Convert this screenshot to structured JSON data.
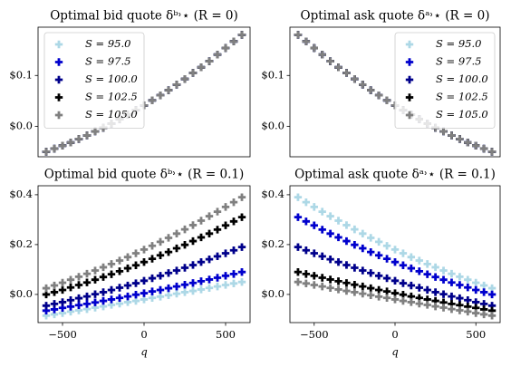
{
  "chart_data": [
    {
      "type": "scatter",
      "title": "Optimal bid quote δᵇ˒⋆ (R = 0)",
      "legend": "upper left",
      "x": [
        -600,
        -550,
        -500,
        -450,
        -400,
        -350,
        -300,
        -250,
        -200,
        -150,
        -100,
        -50,
        0,
        50,
        100,
        150,
        200,
        250,
        300,
        350,
        400,
        450,
        500,
        550,
        600
      ],
      "xlim": [
        -650,
        650
      ],
      "ylim": [
        -0.06,
        0.195
      ],
      "yticks": [
        {
          "value": 0.0,
          "label": "$0.0"
        },
        {
          "value": 0.1,
          "label": "$0.1"
        }
      ],
      "series": [
        {
          "name": "S = 95.0",
          "color": "#add8e6",
          "values": [
            -0.05,
            -0.044,
            -0.038,
            -0.032,
            -0.025,
            -0.018,
            -0.01,
            -0.003,
            0.005,
            0.014,
            0.023,
            0.032,
            0.041,
            0.051,
            0.061,
            0.071,
            0.082,
            0.093,
            0.105,
            0.116,
            0.128,
            0.141,
            0.154,
            0.167,
            0.18
          ]
        },
        {
          "name": "S = 97.5",
          "color": "#0000cd",
          "values": [
            -0.05,
            -0.044,
            -0.038,
            -0.032,
            -0.025,
            -0.018,
            -0.01,
            -0.003,
            0.005,
            0.014,
            0.023,
            0.032,
            0.041,
            0.051,
            0.061,
            0.071,
            0.082,
            0.093,
            0.105,
            0.116,
            0.128,
            0.141,
            0.154,
            0.167,
            0.18
          ]
        },
        {
          "name": "S = 100.0",
          "color": "#00008b",
          "values": [
            -0.05,
            -0.044,
            -0.038,
            -0.032,
            -0.025,
            -0.018,
            -0.01,
            -0.003,
            0.005,
            0.014,
            0.023,
            0.032,
            0.041,
            0.051,
            0.061,
            0.071,
            0.082,
            0.093,
            0.105,
            0.116,
            0.128,
            0.141,
            0.154,
            0.167,
            0.18
          ]
        },
        {
          "name": "S = 102.5",
          "color": "#000000",
          "values": [
            -0.05,
            -0.044,
            -0.038,
            -0.032,
            -0.025,
            -0.018,
            -0.01,
            -0.003,
            0.005,
            0.014,
            0.023,
            0.032,
            0.041,
            0.051,
            0.061,
            0.071,
            0.082,
            0.093,
            0.105,
            0.116,
            0.128,
            0.141,
            0.154,
            0.167,
            0.18
          ]
        },
        {
          "name": "S = 105.0",
          "color": "#808080",
          "values": [
            -0.05,
            -0.044,
            -0.038,
            -0.032,
            -0.025,
            -0.018,
            -0.01,
            -0.003,
            0.005,
            0.014,
            0.023,
            0.032,
            0.041,
            0.051,
            0.061,
            0.071,
            0.082,
            0.093,
            0.105,
            0.116,
            0.128,
            0.141,
            0.154,
            0.167,
            0.18
          ]
        }
      ]
    },
    {
      "type": "scatter",
      "title": "Optimal ask quote δᵃ˒⋆ (R = 0)",
      "legend": "upper right",
      "x": [
        -600,
        -550,
        -500,
        -450,
        -400,
        -350,
        -300,
        -250,
        -200,
        -150,
        -100,
        -50,
        0,
        50,
        100,
        150,
        200,
        250,
        300,
        350,
        400,
        450,
        500,
        550,
        600
      ],
      "xlim": [
        -650,
        650
      ],
      "ylim": [
        -0.06,
        0.195
      ],
      "yticks": [
        {
          "value": 0.0,
          "label": "$0.0"
        },
        {
          "value": 0.1,
          "label": "$0.1"
        }
      ],
      "series": [
        {
          "name": "S = 95.0",
          "color": "#add8e6",
          "values": [
            0.18,
            0.167,
            0.154,
            0.141,
            0.128,
            0.116,
            0.105,
            0.093,
            0.082,
            0.071,
            0.061,
            0.051,
            0.041,
            0.032,
            0.023,
            0.014,
            0.005,
            -0.003,
            -0.01,
            -0.018,
            -0.025,
            -0.032,
            -0.038,
            -0.044,
            -0.05
          ]
        },
        {
          "name": "S = 97.5",
          "color": "#0000cd",
          "values": [
            0.18,
            0.167,
            0.154,
            0.141,
            0.128,
            0.116,
            0.105,
            0.093,
            0.082,
            0.071,
            0.061,
            0.051,
            0.041,
            0.032,
            0.023,
            0.014,
            0.005,
            -0.003,
            -0.01,
            -0.018,
            -0.025,
            -0.032,
            -0.038,
            -0.044,
            -0.05
          ]
        },
        {
          "name": "S = 100.0",
          "color": "#00008b",
          "values": [
            0.18,
            0.167,
            0.154,
            0.141,
            0.128,
            0.116,
            0.105,
            0.093,
            0.082,
            0.071,
            0.061,
            0.051,
            0.041,
            0.032,
            0.023,
            0.014,
            0.005,
            -0.003,
            -0.01,
            -0.018,
            -0.025,
            -0.032,
            -0.038,
            -0.044,
            -0.05
          ]
        },
        {
          "name": "S = 102.5",
          "color": "#000000",
          "values": [
            0.18,
            0.167,
            0.154,
            0.141,
            0.128,
            0.116,
            0.105,
            0.093,
            0.082,
            0.071,
            0.061,
            0.051,
            0.041,
            0.032,
            0.023,
            0.014,
            0.005,
            -0.003,
            -0.01,
            -0.018,
            -0.025,
            -0.032,
            -0.038,
            -0.044,
            -0.05
          ]
        },
        {
          "name": "S = 105.0",
          "color": "#808080",
          "values": [
            0.18,
            0.167,
            0.154,
            0.141,
            0.128,
            0.116,
            0.105,
            0.093,
            0.082,
            0.071,
            0.061,
            0.051,
            0.041,
            0.032,
            0.023,
            0.014,
            0.005,
            -0.003,
            -0.01,
            -0.018,
            -0.025,
            -0.032,
            -0.038,
            -0.044,
            -0.05
          ]
        }
      ]
    },
    {
      "type": "scatter",
      "title": "Optimal bid quote δᵇ˒⋆ (R = 0.1)",
      "x_label": "q",
      "x": [
        -600,
        -550,
        -500,
        -450,
        -400,
        -350,
        -300,
        -250,
        -200,
        -150,
        -100,
        -50,
        0,
        50,
        100,
        150,
        200,
        250,
        300,
        350,
        400,
        450,
        500,
        550,
        600
      ],
      "xlim": [
        -650,
        650
      ],
      "ylim": [
        -0.113,
        0.436
      ],
      "xticks": [
        {
          "value": -500,
          "label": "−500"
        },
        0,
        500
      ],
      "yticks": [
        {
          "value": 0.0,
          "label": "$0.0"
        },
        {
          "value": 0.2,
          "label": "$0.2"
        },
        {
          "value": 0.4,
          "label": "$0.4"
        }
      ],
      "series": [
        {
          "color": "#add8e6",
          "values": [
            -0.085,
            -0.08,
            -0.075,
            -0.069,
            -0.064,
            -0.059,
            -0.053,
            -0.048,
            -0.042,
            -0.037,
            -0.031,
            -0.026,
            -0.02,
            -0.014,
            -0.009,
            -0.003,
            0.003,
            0.009,
            0.014,
            0.02,
            0.026,
            0.032,
            0.038,
            0.044,
            0.05
          ]
        },
        {
          "color": "#0000cd",
          "values": [
            -0.065,
            -0.06,
            -0.054,
            -0.049,
            -0.043,
            -0.038,
            -0.032,
            -0.026,
            -0.02,
            -0.014,
            -0.008,
            -0.001,
            0.005,
            0.012,
            0.018,
            0.025,
            0.032,
            0.039,
            0.046,
            0.053,
            0.06,
            0.067,
            0.075,
            0.082,
            0.09
          ]
        },
        {
          "color": "#00008b",
          "values": [
            -0.045,
            -0.038,
            -0.031,
            -0.023,
            -0.015,
            -0.008,
            0.001,
            0.009,
            0.018,
            0.027,
            0.036,
            0.045,
            0.055,
            0.065,
            0.075,
            0.086,
            0.096,
            0.107,
            0.118,
            0.13,
            0.141,
            0.153,
            0.165,
            0.177,
            0.19
          ]
        },
        {
          "color": "#000000",
          "values": [
            0.0,
            0.009,
            0.018,
            0.028,
            0.038,
            0.048,
            0.059,
            0.07,
            0.081,
            0.093,
            0.105,
            0.117,
            0.13,
            0.143,
            0.157,
            0.17,
            0.185,
            0.199,
            0.214,
            0.229,
            0.244,
            0.26,
            0.277,
            0.293,
            0.31
          ]
        },
        {
          "color": "#808080",
          "values": [
            0.025,
            0.036,
            0.047,
            0.059,
            0.071,
            0.083,
            0.096,
            0.109,
            0.122,
            0.136,
            0.15,
            0.165,
            0.18,
            0.195,
            0.211,
            0.227,
            0.244,
            0.261,
            0.278,
            0.296,
            0.314,
            0.332,
            0.351,
            0.37,
            0.39
          ]
        }
      ]
    },
    {
      "type": "scatter",
      "title": "Optimal ask quote δᵃ˒⋆ (R = 0.1)",
      "x_label": "q",
      "x": [
        -600,
        -550,
        -500,
        -450,
        -400,
        -350,
        -300,
        -250,
        -200,
        -150,
        -100,
        -50,
        0,
        50,
        100,
        150,
        200,
        250,
        300,
        350,
        400,
        450,
        500,
        550,
        600
      ],
      "xlim": [
        -650,
        650
      ],
      "ylim": [
        -0.113,
        0.436
      ],
      "xticks": [
        {
          "value": -500,
          "label": "−500"
        },
        0,
        500
      ],
      "yticks": [
        {
          "value": 0.0,
          "label": "$0.0"
        },
        {
          "value": 0.2,
          "label": "$0.2"
        },
        {
          "value": 0.4,
          "label": "$0.4"
        }
      ],
      "series": [
        {
          "color": "#add8e6",
          "values": [
            0.39,
            0.37,
            0.351,
            0.332,
            0.314,
            0.296,
            0.278,
            0.261,
            0.244,
            0.227,
            0.211,
            0.195,
            0.18,
            0.165,
            0.15,
            0.136,
            0.122,
            0.109,
            0.096,
            0.083,
            0.071,
            0.059,
            0.047,
            0.036,
            0.025
          ]
        },
        {
          "color": "#0000cd",
          "values": [
            0.31,
            0.293,
            0.277,
            0.26,
            0.244,
            0.229,
            0.214,
            0.199,
            0.185,
            0.17,
            0.157,
            0.143,
            0.13,
            0.117,
            0.105,
            0.093,
            0.081,
            0.07,
            0.059,
            0.048,
            0.038,
            0.028,
            0.018,
            0.009,
            0.0
          ]
        },
        {
          "color": "#00008b",
          "values": [
            0.19,
            0.177,
            0.165,
            0.153,
            0.141,
            0.13,
            0.118,
            0.107,
            0.096,
            0.086,
            0.075,
            0.065,
            0.055,
            0.045,
            0.036,
            0.027,
            0.018,
            0.009,
            0.001,
            -0.008,
            -0.015,
            -0.023,
            -0.031,
            -0.038,
            -0.045
          ]
        },
        {
          "color": "#000000",
          "values": [
            0.09,
            0.082,
            0.075,
            0.067,
            0.06,
            0.053,
            0.046,
            0.039,
            0.032,
            0.025,
            0.018,
            0.012,
            0.005,
            -0.001,
            -0.008,
            -0.014,
            -0.02,
            -0.026,
            -0.032,
            -0.038,
            -0.043,
            -0.049,
            -0.054,
            -0.06,
            -0.065
          ]
        },
        {
          "color": "#808080",
          "values": [
            0.05,
            0.044,
            0.038,
            0.032,
            0.026,
            0.02,
            0.014,
            0.009,
            0.003,
            -0.003,
            -0.009,
            -0.014,
            -0.02,
            -0.026,
            -0.031,
            -0.037,
            -0.042,
            -0.048,
            -0.053,
            -0.059,
            -0.064,
            -0.069,
            -0.075,
            -0.08,
            -0.085
          ]
        }
      ]
    }
  ]
}
